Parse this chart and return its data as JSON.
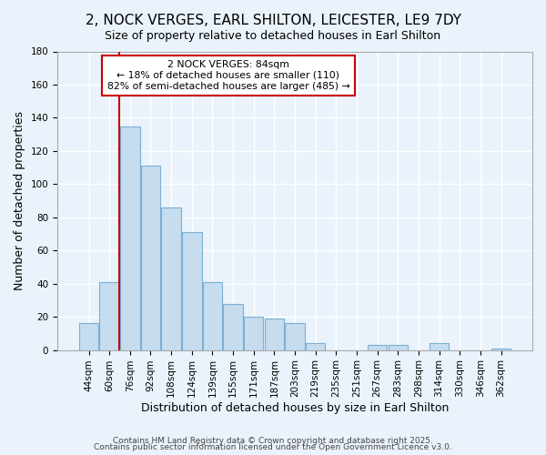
{
  "title": "2, NOCK VERGES, EARL SHILTON, LEICESTER, LE9 7DY",
  "subtitle": "Size of property relative to detached houses in Earl Shilton",
  "xlabel": "Distribution of detached houses by size in Earl Shilton",
  "ylabel": "Number of detached properties",
  "categories": [
    "44sqm",
    "60sqm",
    "76sqm",
    "92sqm",
    "108sqm",
    "124sqm",
    "139sqm",
    "155sqm",
    "171sqm",
    "187sqm",
    "203sqm",
    "219sqm",
    "235sqm",
    "251sqm",
    "267sqm",
    "283sqm",
    "298sqm",
    "314sqm",
    "330sqm",
    "346sqm",
    "362sqm"
  ],
  "values": [
    16,
    41,
    135,
    111,
    86,
    71,
    41,
    28,
    20,
    19,
    16,
    4,
    0,
    0,
    3,
    3,
    0,
    4,
    0,
    0,
    1
  ],
  "bar_color": "#c6dcef",
  "bar_edge_color": "#7bafd4",
  "vline_index": 2,
  "vline_color": "#cc0000",
  "ylim": [
    0,
    180
  ],
  "yticks": [
    0,
    20,
    40,
    60,
    80,
    100,
    120,
    140,
    160,
    180
  ],
  "annotation_title": "2 NOCK VERGES: 84sqm",
  "annotation_line1": "← 18% of detached houses are smaller (110)",
  "annotation_line2": "82% of semi-detached houses are larger (485) →",
  "footer1": "Contains HM Land Registry data © Crown copyright and database right 2025.",
  "footer2": "Contains public sector information licensed under the Open Government Licence v3.0.",
  "background_color": "#eaf3fb",
  "grid_color": "#ffffff",
  "title_fontsize": 11,
  "subtitle_fontsize": 9,
  "axis_label_fontsize": 9,
  "tick_fontsize": 7.5,
  "footer_fontsize": 6.5
}
